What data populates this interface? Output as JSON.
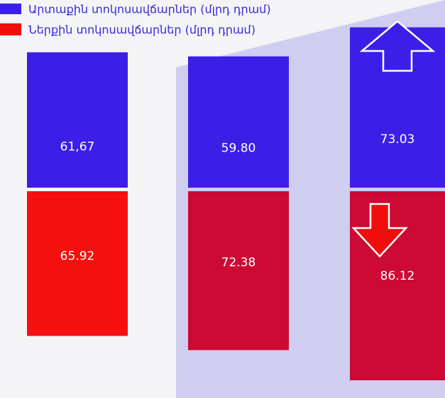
{
  "chart_data": {
    "type": "bar",
    "categories": [
      null,
      null,
      null
    ],
    "series": [
      {
        "name": "Արտաքին տոկոսավճարներ (մլրդ դրամ)",
        "color": "#3b1fe6",
        "colors": [
          "#3b1fe6",
          "#3b1fe6",
          "#3b1fe6"
        ],
        "values": [
          61.67,
          59.8,
          73.03
        ],
        "value_labels": [
          "61,67",
          "59.80",
          "73.03"
        ]
      },
      {
        "name": "Ներքին տոկոսավճարներ (մլրդ դրամ)",
        "color": "#f20d0d",
        "colors": [
          "#f50f0f",
          "#cc0a34",
          "#cc0a34"
        ],
        "values": [
          65.92,
          72.38,
          86.12
        ],
        "value_labels": [
          "65.92",
          "72.38",
          "86.12"
        ]
      }
    ]
  }
}
